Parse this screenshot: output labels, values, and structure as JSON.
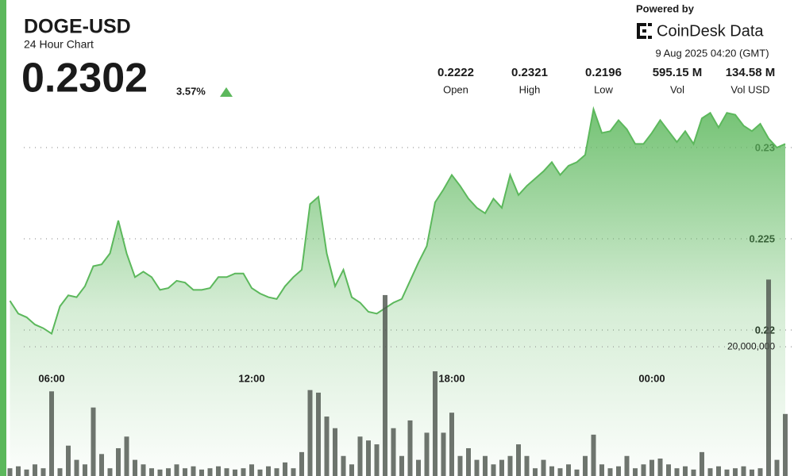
{
  "header": {
    "symbol": "DOGE-USD",
    "subtitle": "24 Hour Chart",
    "price": "0.2302",
    "change": "3.57%"
  },
  "branding": {
    "powered_by": "Powered by",
    "brand": "CoinDesk Data",
    "timestamp": "9 Aug 2025 04:20 (GMT)"
  },
  "stats": [
    {
      "value": "0.2222",
      "label": "Open"
    },
    {
      "value": "0.2321",
      "label": "High"
    },
    {
      "value": "0.2196",
      "label": "Low"
    },
    {
      "value": "595.15 M",
      "label": "Vol"
    },
    {
      "value": "134.58 M",
      "label": "Vol USD"
    }
  ],
  "chart_data": {
    "type": "area",
    "categories": [
      null,
      null,
      null,
      null,
      null,
      "06:00",
      null,
      null,
      null,
      null,
      null,
      null,
      null,
      null,
      null,
      null,
      null,
      null,
      null,
      null,
      null,
      null,
      null,
      null,
      null,
      null,
      null,
      null,
      null,
      "12:00",
      null,
      null,
      null,
      null,
      null,
      null,
      null,
      null,
      null,
      null,
      null,
      null,
      null,
      null,
      null,
      null,
      null,
      null,
      null,
      null,
      null,
      null,
      null,
      "18:00",
      null,
      null,
      null,
      null,
      null,
      null,
      null,
      null,
      null,
      null,
      null,
      null,
      null,
      null,
      null,
      null,
      null,
      null,
      null,
      null,
      null,
      null,
      null,
      "00:00",
      null,
      null,
      null,
      null,
      null,
      null,
      null,
      null,
      null,
      null,
      null,
      null,
      null,
      null,
      null,
      null
    ],
    "values": [
      0.2216,
      0.2209,
      0.2207,
      0.2203,
      0.2201,
      0.2198,
      0.2213,
      0.2219,
      0.2218,
      0.2224,
      0.2235,
      0.2236,
      0.2242,
      0.226,
      0.2242,
      0.2229,
      0.2232,
      0.2229,
      0.2222,
      0.2223,
      0.2227,
      0.2226,
      0.2222,
      0.2222,
      0.2223,
      0.2229,
      0.2229,
      0.2231,
      0.2231,
      0.2223,
      0.222,
      0.2218,
      0.2217,
      0.2224,
      0.2229,
      0.2233,
      0.2269,
      0.2273,
      0.2242,
      0.2224,
      0.2233,
      0.2218,
      0.2215,
      0.221,
      0.2209,
      0.2212,
      0.2215,
      0.2217,
      0.2227,
      0.2237,
      0.2246,
      0.227,
      0.2277,
      0.2285,
      0.2279,
      0.2272,
      0.2267,
      0.2264,
      0.2272,
      0.2267,
      0.2285,
      0.2274,
      0.2279,
      0.2283,
      0.2287,
      0.2292,
      0.2285,
      0.229,
      0.2292,
      0.2296,
      0.2321,
      0.2308,
      0.2309,
      0.2315,
      0.231,
      0.2302,
      0.2302,
      0.2308,
      0.2315,
      0.2309,
      0.2303,
      0.2309,
      0.2302,
      0.2316,
      0.2319,
      0.2311,
      0.2319,
      0.2318,
      0.2312,
      0.2309,
      0.2313,
      0.2305,
      0.23,
      0.2302
    ],
    "color": "#5cb85c",
    "ylim": [
      0.212,
      0.2325
    ],
    "yticks": [
      0.22,
      0.225,
      0.23
    ],
    "grid": true,
    "volume": {
      "type": "bar",
      "color": "#4f574f",
      "values": [
        1200000,
        1500000,
        1000000,
        1800000,
        1200000,
        13100000,
        1200000,
        4700000,
        2500000,
        1800000,
        10600000,
        3400000,
        1200000,
        4300000,
        6100000,
        2500000,
        1800000,
        1200000,
        1000000,
        1200000,
        1800000,
        1200000,
        1500000,
        1000000,
        1200000,
        1500000,
        1200000,
        1000000,
        1200000,
        1800000,
        1000000,
        1500000,
        1200000,
        2100000,
        1200000,
        3700000,
        13300000,
        12900000,
        9200000,
        7400000,
        3100000,
        1800000,
        6100000,
        5500000,
        4900000,
        28000000,
        7400000,
        3100000,
        8600000,
        2500000,
        6700000,
        16200000,
        6700000,
        9800000,
        3100000,
        4300000,
        2500000,
        3100000,
        1800000,
        2500000,
        3100000,
        4900000,
        3100000,
        1200000,
        2500000,
        1500000,
        1200000,
        1800000,
        1000000,
        3100000,
        6400000,
        1800000,
        1200000,
        1500000,
        3100000,
        1200000,
        1800000,
        2500000,
        2700000,
        1800000,
        1200000,
        1500000,
        1000000,
        3700000,
        1200000,
        1500000,
        1000000,
        1200000,
        1500000,
        1000000,
        1200000,
        30400000,
        2500000,
        9600000
      ],
      "ylim": [
        0,
        57700000
      ],
      "yticks": [
        {
          "value": 20000000,
          "label": "20,000,000"
        }
      ]
    }
  }
}
